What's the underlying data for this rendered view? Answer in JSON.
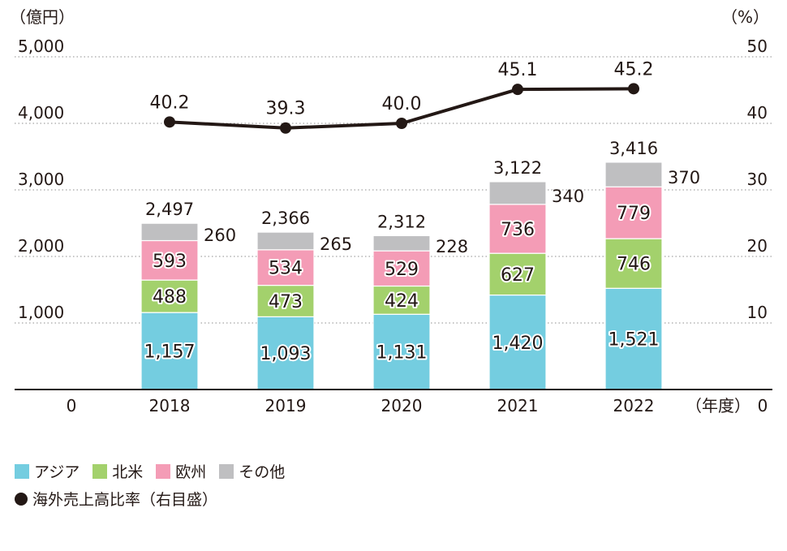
{
  "chart_data": {
    "type": "bar",
    "stacked": true,
    "left_unit": "（億円）",
    "right_unit": "（%）",
    "x_unit": "（年度）",
    "categories": [
      "2018",
      "2019",
      "2020",
      "2021",
      "2022"
    ],
    "left_ticks": [
      "0",
      "1,000",
      "2,000",
      "3,000",
      "4,000",
      "5,000"
    ],
    "right_ticks": [
      "0",
      "10",
      "20",
      "30",
      "40",
      "50"
    ],
    "ylim": [
      0,
      5000
    ],
    "y2lim": [
      0,
      50
    ],
    "grid": "dotted",
    "series": [
      {
        "name": "アジア",
        "color": "#74cde0",
        "values": [
          1157,
          1093,
          1131,
          1420,
          1521
        ],
        "labels": [
          "1,157",
          "1,093",
          "1,131",
          "1,420",
          "1,521"
        ]
      },
      {
        "name": "北米",
        "color": "#a3d16c",
        "values": [
          488,
          473,
          424,
          627,
          746
        ],
        "labels": [
          "488",
          "473",
          "424",
          "627",
          "746"
        ]
      },
      {
        "name": "欧州",
        "color": "#f49cb6",
        "values": [
          593,
          534,
          529,
          736,
          779
        ],
        "labels": [
          "593",
          "534",
          "529",
          "736",
          "779"
        ]
      },
      {
        "name": "その他",
        "color": "#bfbfc1",
        "values": [
          260,
          265,
          228,
          340,
          370
        ],
        "labels": [
          "260",
          "265",
          "228",
          "340",
          "370"
        ]
      }
    ],
    "totals": [
      2497,
      2366,
      2312,
      3122,
      3416
    ],
    "total_labels": [
      "2,497",
      "2,366",
      "2,312",
      "3,122",
      "3,416"
    ],
    "line": {
      "name": "海外売上高比率（右目盛）",
      "color": "#231815",
      "values": [
        40.2,
        39.3,
        40.0,
        45.1,
        45.2
      ],
      "labels": [
        "40.2",
        "39.3",
        "40.0",
        "45.1",
        "45.2"
      ]
    }
  }
}
